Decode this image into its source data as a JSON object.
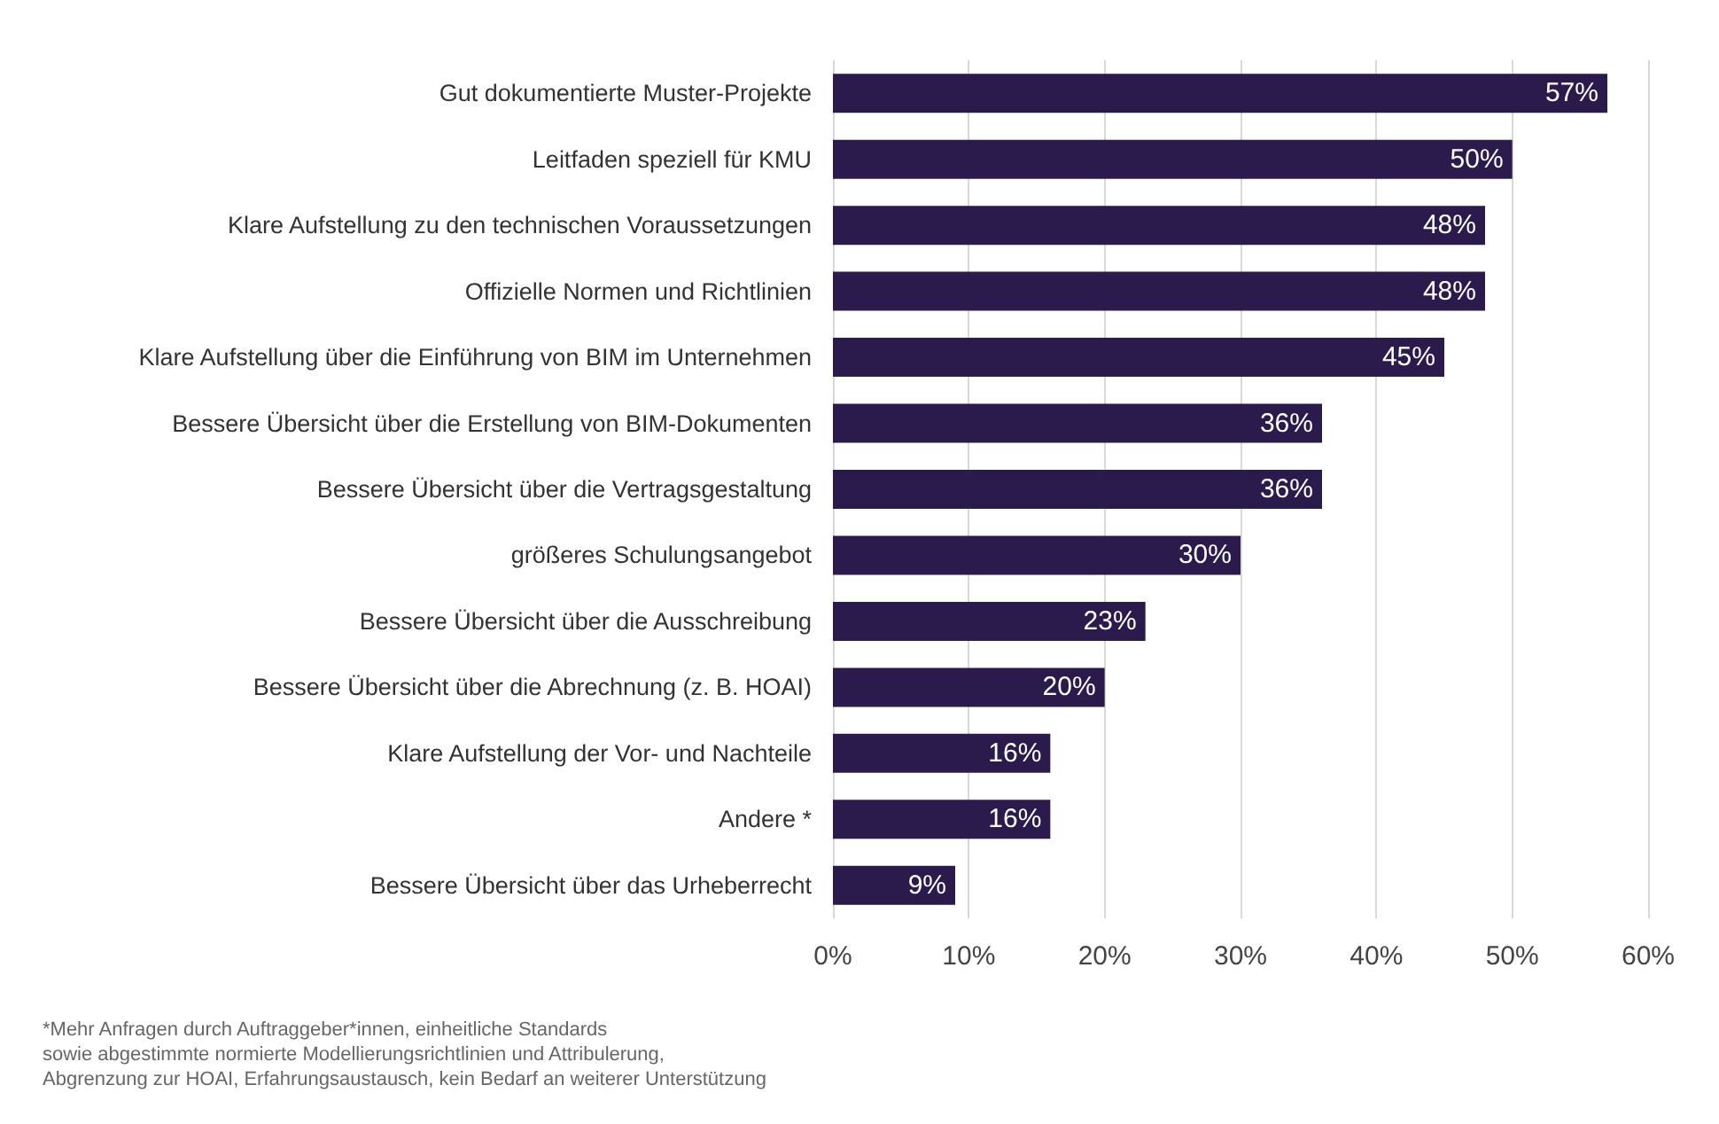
{
  "chart_data": {
    "type": "bar",
    "orientation": "horizontal",
    "categories": [
      "Gut dokumentierte Muster-Projekte",
      "Leitfaden speziell für KMU",
      "Klare Aufstellung zu den technischen Voraussetzungen",
      "Offizielle Normen und Richtlinien",
      "Klare Aufstellung über die Einführung von BIM im Unternehmen",
      "Bessere Übersicht über die Erstellung von BIM-Dokumenten",
      "Bessere Übersicht über die Vertragsgestaltung",
      "größeres Schulungsangebot",
      "Bessere Übersicht über die Ausschreibung",
      "Bessere Übersicht über die Abrechnung (z. B. HOAI)",
      "Klare Aufstellung der Vor- und Nachteile",
      "Andere *",
      "Bessere Übersicht über das Urheberrecht"
    ],
    "values": [
      57,
      50,
      48,
      48,
      45,
      36,
      36,
      30,
      23,
      20,
      16,
      16,
      9
    ],
    "value_labels": [
      "57%",
      "50%",
      "48%",
      "48%",
      "45%",
      "36%",
      "36%",
      "30%",
      "23%",
      "20%",
      "16%",
      "16%",
      "9%"
    ],
    "color": "#2b1a4c",
    "xlim": [
      0,
      60
    ],
    "xticks": [
      {
        "value": 0,
        "label": "0%"
      },
      {
        "value": 10,
        "label": "10%"
      },
      {
        "value": 20,
        "label": "20%"
      },
      {
        "value": 30,
        "label": "30%"
      },
      {
        "value": 40,
        "label": "40%"
      },
      {
        "value": 50,
        "label": "50%"
      },
      {
        "value": 60,
        "label": "60%"
      }
    ],
    "grid": "x",
    "annotations": [
      "*Mehr Anfragen durch Auftraggeber*innen, einheitliche Standards\nsowie abgestimmte normierte Modellierungsrichtlinien und Attribulerung,\nAbgrenzung zur HOAI, Erfahrungsaustausch, kein Bedarf an weiterer Unterstützung"
    ]
  }
}
